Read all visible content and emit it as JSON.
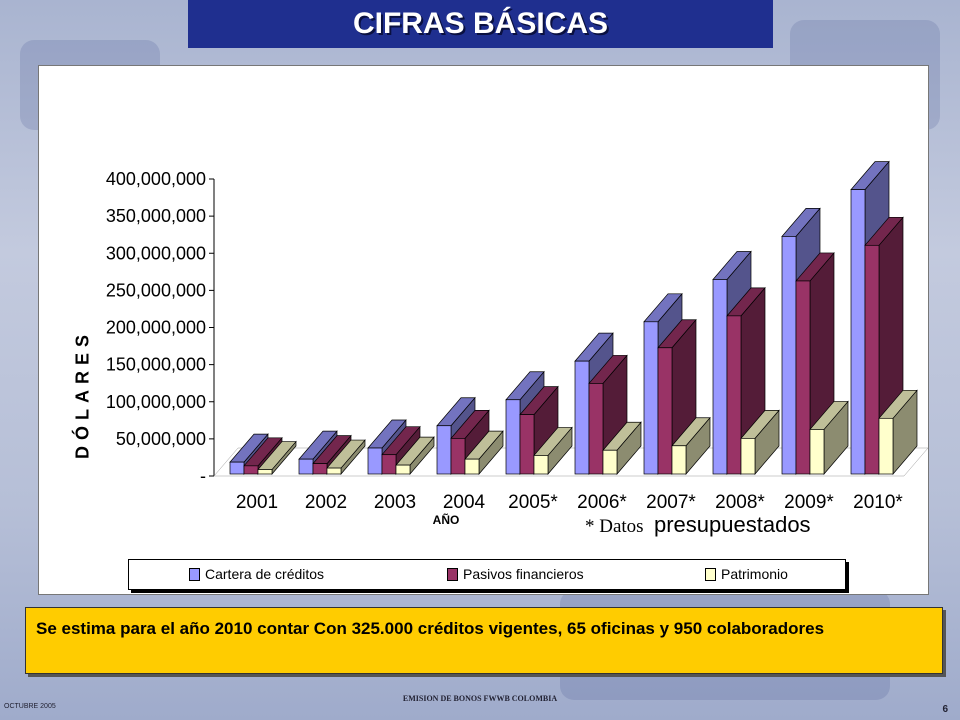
{
  "header": {
    "title": "CIFRAS BÁSICAS"
  },
  "chart_data": {
    "type": "bar",
    "categories": [
      "2001",
      "2002",
      "2003",
      "2004",
      "2005*",
      "2006*",
      "2007*",
      "2008*",
      "2009*",
      "2010*"
    ],
    "series": [
      {
        "name": "Cartera de créditos",
        "values": [
          16000000,
          20000000,
          35000000,
          65000000,
          100000000,
          152000000,
          205000000,
          262000000,
          320000000,
          383000000
        ],
        "color": "#9999ff"
      },
      {
        "name": "Pasivos financieros",
        "values": [
          11000000,
          14000000,
          26000000,
          48000000,
          80000000,
          122000000,
          170000000,
          213000000,
          260000000,
          308000000
        ],
        "color": "#993366"
      },
      {
        "name": "Patrimonio",
        "values": [
          6000000,
          8000000,
          12000000,
          20000000,
          25000000,
          32000000,
          38000000,
          48000000,
          60000000,
          75000000
        ],
        "color": "#ffffcc"
      }
    ],
    "ylim": [
      0,
      400000000
    ],
    "yticks": [
      "-",
      "50,000,000",
      "100,000,000",
      "150,000,000",
      "200,000,000",
      "250,000,000",
      "300,000,000",
      "350,000,000",
      "400,000,000"
    ],
    "ylabel": "DÓLARES",
    "xlabel": "AÑO",
    "annotation_prefix": "* Datos",
    "annotation_suffix": "presupuestados",
    "legend_position": "bottom"
  },
  "note": {
    "text": "Se estima para el año 2010 contar Con 325.000 créditos vigentes, 65 oficinas y 950 colaboradores"
  },
  "footer": {
    "date": "OCTUBRE 2005",
    "center": "EMISION DE BONOS FWWB COLOMBIA",
    "page": "6"
  }
}
